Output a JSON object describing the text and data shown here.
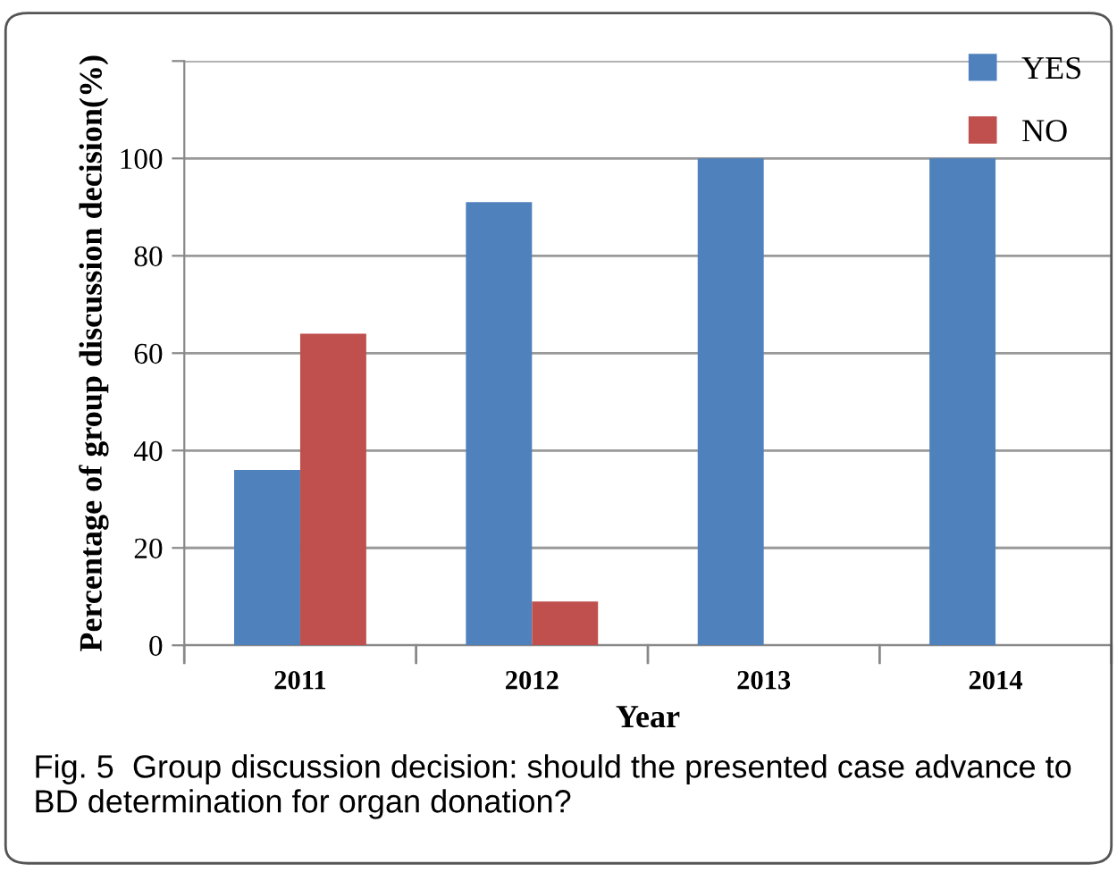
{
  "chart_data": {
    "type": "bar",
    "xlabel": "Year",
    "ylabel": "Percentage of group discussion decision(%)",
    "categories": [
      "2011",
      "2012",
      "2013",
      "2014"
    ],
    "series": [
      {
        "name": "YES",
        "color": "#4f81bd",
        "values": [
          36,
          91,
          100,
          100
        ]
      },
      {
        "name": "NO",
        "color": "#c0504d",
        "values": [
          64,
          9,
          0,
          0
        ]
      }
    ],
    "ylim": [
      0,
      120
    ],
    "yticks": [
      0,
      20,
      40,
      60,
      80,
      100,
      {
        "value": 120,
        "label": null
      }
    ],
    "grid": "y",
    "legend": "top right",
    "annotations": [
      "Fig. 5  Group discussion decision: should the presented case advance to BD determination for organ donation?"
    ]
  }
}
